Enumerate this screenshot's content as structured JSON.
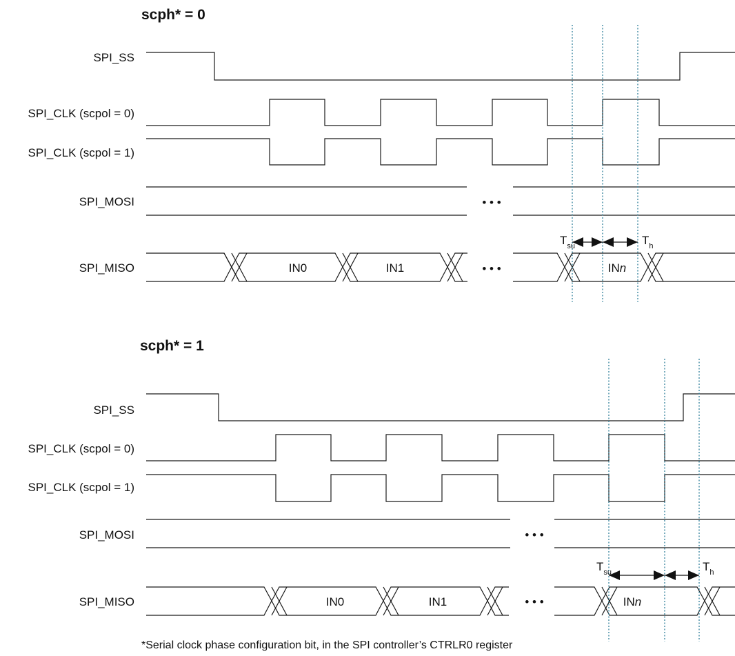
{
  "panels": [
    {
      "title": "scph* = 0",
      "signals": {
        "ss": "SPI_SS",
        "clk0": "SPI_CLK (scpol = 0)",
        "clk1": "SPI_CLK (scpol = 1)",
        "mosi": "SPI_MOSI",
        "miso": "SPI_MISO"
      },
      "data_labels": {
        "in0": "IN0",
        "in1": "IN1",
        "inn_prefix": "IN",
        "inn_italic": "n"
      },
      "ellipsis": "• • •",
      "tsu": {
        "main": "T",
        "sub": "su"
      },
      "th": {
        "main": "T",
        "sub": "h"
      }
    },
    {
      "title": "scph* = 1",
      "signals": {
        "ss": "SPI_SS",
        "clk0": "SPI_CLK (scpol = 0)",
        "clk1": "SPI_CLK (scpol = 1)",
        "mosi": "SPI_MOSI",
        "miso": "SPI_MISO"
      },
      "data_labels": {
        "in0": "IN0",
        "in1": "IN1",
        "inn_prefix": "IN",
        "inn_italic": "n"
      },
      "ellipsis": "• • •",
      "tsu": {
        "main": "T",
        "sub": "su"
      },
      "th": {
        "main": "T",
        "sub": "h"
      }
    }
  ],
  "footnote": "*Serial clock phase configuration bit, in the SPI controller’s CTRLR0 register",
  "colors": {
    "guide": "#2f7f9a",
    "line": "#1a1a1a"
  }
}
